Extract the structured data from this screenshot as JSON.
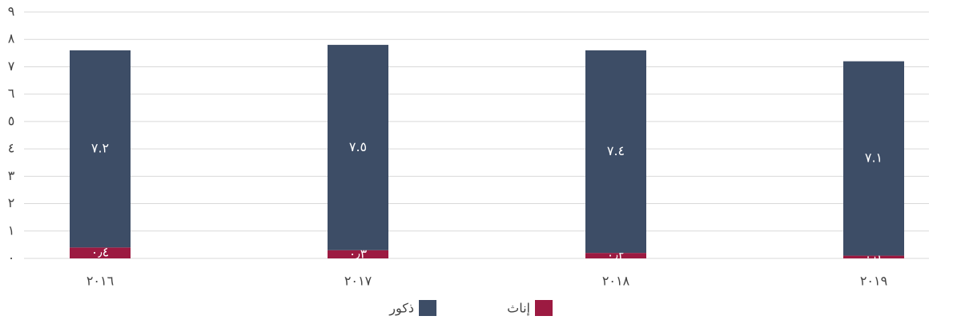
{
  "chart_data": {
    "type": "stacked-bar",
    "categories": [
      "٢٠١٦",
      "٢٠١٧",
      "٢٠١٨",
      "٢٠١٩"
    ],
    "series": [
      {
        "name": "إناث",
        "color": "#9c1a41",
        "values": [
          0.4,
          0.3,
          0.2,
          0.1
        ],
        "value_labels": [
          "٠٫٤",
          "٠٫٣",
          "٠٫٢",
          "٠٫١"
        ]
      },
      {
        "name": "ذكور",
        "color": "#3d4d66",
        "values": [
          7.2,
          7.5,
          7.4,
          7.1
        ],
        "value_labels": [
          "٧.٢",
          "٧.٥",
          "٧.٤",
          "٧.١"
        ]
      }
    ],
    "ylim": [
      0,
      9
    ],
    "yticks": [
      {
        "value": 0,
        "label": "٠"
      },
      {
        "value": 1,
        "label": "١"
      },
      {
        "value": 2,
        "label": "٢"
      },
      {
        "value": 3,
        "label": "٣"
      },
      {
        "value": 4,
        "label": "٤"
      },
      {
        "value": 5,
        "label": "٥"
      },
      {
        "value": 6,
        "label": "٦"
      },
      {
        "value": 7,
        "label": "٧"
      },
      {
        "value": 8,
        "label": "٨"
      },
      {
        "value": 9,
        "label": "٩"
      }
    ],
    "grid": true
  }
}
